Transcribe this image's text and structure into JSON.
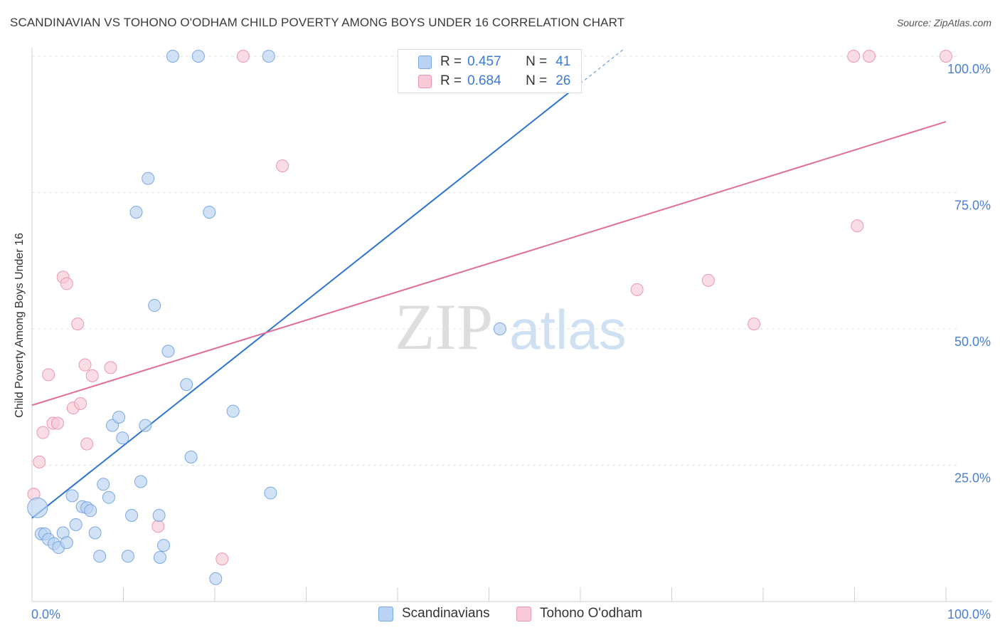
{
  "title": "SCANDINAVIAN VS TOHONO O'ODHAM CHILD POVERTY AMONG BOYS UNDER 16 CORRELATION CHART",
  "source": "Source: ZipAtlas.com",
  "watermark": {
    "zip": "ZIP",
    "atlas": "atlas"
  },
  "legend": {
    "r_label": "R =",
    "n_label": "N =",
    "rows": [
      {
        "r": "0.457",
        "n": "41"
      },
      {
        "r": "0.684",
        "n": "26"
      }
    ]
  },
  "bottom_legend": [
    "Scandinavians",
    "Tohono O'odham"
  ],
  "colors": {
    "blue_fill": "#b8d3f3",
    "blue_stroke": "#7aa7e3",
    "blue_line": "#2f74d0",
    "pink_fill": "#f8c9d7",
    "pink_stroke": "#eb97b1",
    "pink_line": "#e06d97",
    "axis_text": "#4a7fd0",
    "grid": "#e2e2e2"
  },
  "chart_data": {
    "type": "scatter",
    "title": "SCANDINAVIAN VS TOHONO O'ODHAM CHILD POVERTY AMONG BOYS UNDER 16 CORRELATION CHART",
    "xlabel": "",
    "ylabel": "Child Poverty Among Boys Under 16",
    "xlim": [
      0,
      100
    ],
    "ylim": [
      0,
      100
    ],
    "x_tick_labels": [
      "0.0%",
      "100.0%"
    ],
    "y_tick_values": [
      25,
      50,
      75,
      100
    ],
    "y_tick_labels": [
      "25.0%",
      "50.0%",
      "75.0%",
      "100.0%"
    ],
    "grid": true,
    "series": [
      {
        "name": "Scandinavians",
        "r": 0.457,
        "n": 41,
        "trendline": {
          "x": [
            0,
            60
          ],
          "y": [
            15.3,
            95.0
          ],
          "dashed_extension_to_x": 64.7
        },
        "points": [
          [
            0.6,
            17.2,
            "large"
          ],
          [
            1.0,
            12.4
          ],
          [
            1.4,
            12.4
          ],
          [
            1.8,
            11.4
          ],
          [
            2.4,
            10.6
          ],
          [
            2.9,
            9.9
          ],
          [
            3.4,
            12.6
          ],
          [
            3.8,
            10.8
          ],
          [
            4.4,
            19.4
          ],
          [
            4.8,
            14.1
          ],
          [
            5.5,
            17.4
          ],
          [
            6.0,
            17.2
          ],
          [
            6.4,
            16.7
          ],
          [
            6.9,
            12.6
          ],
          [
            7.4,
            8.3
          ],
          [
            7.8,
            21.5
          ],
          [
            8.4,
            19.1
          ],
          [
            8.8,
            32.3
          ],
          [
            9.5,
            33.8
          ],
          [
            9.9,
            30.0
          ],
          [
            10.5,
            8.3
          ],
          [
            10.9,
            15.8
          ],
          [
            11.4,
            71.4
          ],
          [
            11.9,
            22.0
          ],
          [
            12.4,
            32.3
          ],
          [
            12.7,
            77.6
          ],
          [
            13.4,
            54.3
          ],
          [
            13.9,
            15.8
          ],
          [
            14.4,
            10.3
          ],
          [
            14.9,
            45.9
          ],
          [
            14.0,
            8.1
          ],
          [
            15.4,
            100.0
          ],
          [
            16.9,
            39.8
          ],
          [
            17.4,
            26.5
          ],
          [
            18.2,
            100.0
          ],
          [
            19.4,
            71.4
          ],
          [
            20.1,
            4.2
          ],
          [
            22.0,
            34.9
          ],
          [
            25.9,
            100.0
          ],
          [
            26.1,
            19.9
          ],
          [
            51.2,
            50.0
          ]
        ]
      },
      {
        "name": "Tohono O'odham",
        "r": 0.684,
        "n": 26,
        "trendline": {
          "x": [
            0,
            100
          ],
          "y": [
            36.0,
            88.0
          ]
        },
        "points": [
          [
            0.2,
            19.7
          ],
          [
            0.8,
            25.6
          ],
          [
            1.2,
            31.0
          ],
          [
            1.8,
            41.6
          ],
          [
            2.3,
            32.7
          ],
          [
            2.8,
            32.7
          ],
          [
            3.4,
            59.5
          ],
          [
            3.8,
            58.3
          ],
          [
            4.5,
            35.5
          ],
          [
            5.0,
            50.9
          ],
          [
            5.3,
            36.3
          ],
          [
            5.8,
            43.4
          ],
          [
            6.0,
            28.9
          ],
          [
            6.6,
            41.4
          ],
          [
            8.6,
            42.9
          ],
          [
            13.8,
            13.8
          ],
          [
            20.8,
            7.8
          ],
          [
            23.1,
            100.0
          ],
          [
            27.4,
            79.9
          ],
          [
            66.2,
            57.2
          ],
          [
            74.0,
            58.9
          ],
          [
            79.0,
            50.9
          ],
          [
            89.9,
            100.0
          ],
          [
            90.3,
            68.9
          ],
          [
            91.6,
            100.0
          ],
          [
            100.0,
            100.0
          ]
        ]
      }
    ]
  }
}
